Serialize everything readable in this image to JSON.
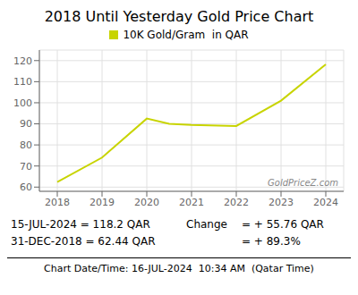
{
  "chart_data": {
    "type": "line",
    "title": "2018 Until Yesterday Gold Price Chart",
    "x": [
      2018.0,
      2019.0,
      2020.0,
      2020.5,
      2021.0,
      2022.0,
      2023.0,
      2024.0
    ],
    "series": [
      {
        "name": "10K Gold/Gram  in QAR",
        "color": "#c8d400",
        "values": [
          62.44,
          74.0,
          92.5,
          90.0,
          89.5,
          89.0,
          101.0,
          118.2
        ]
      }
    ],
    "xlim": [
      2017.6,
      2024.4
    ],
    "ylim": [
      58,
      125
    ],
    "xticks": [
      2018,
      2019,
      2020,
      2021,
      2022,
      2023,
      2024
    ],
    "yticks": [
      60,
      70,
      80,
      90,
      100,
      110,
      120
    ],
    "grid": true,
    "legend": "top",
    "annotations": [
      "GoldPriceZ.com",
      "15-JUL-2024 = 118.2 QAR",
      "31-DEC-2018 = 62.44 QAR",
      "Change",
      "= + 55.76 QAR",
      "= + 89.3%",
      "Chart Date/Time: 16-JUL-2024  10:34 AM  (Qatar Time)"
    ]
  }
}
